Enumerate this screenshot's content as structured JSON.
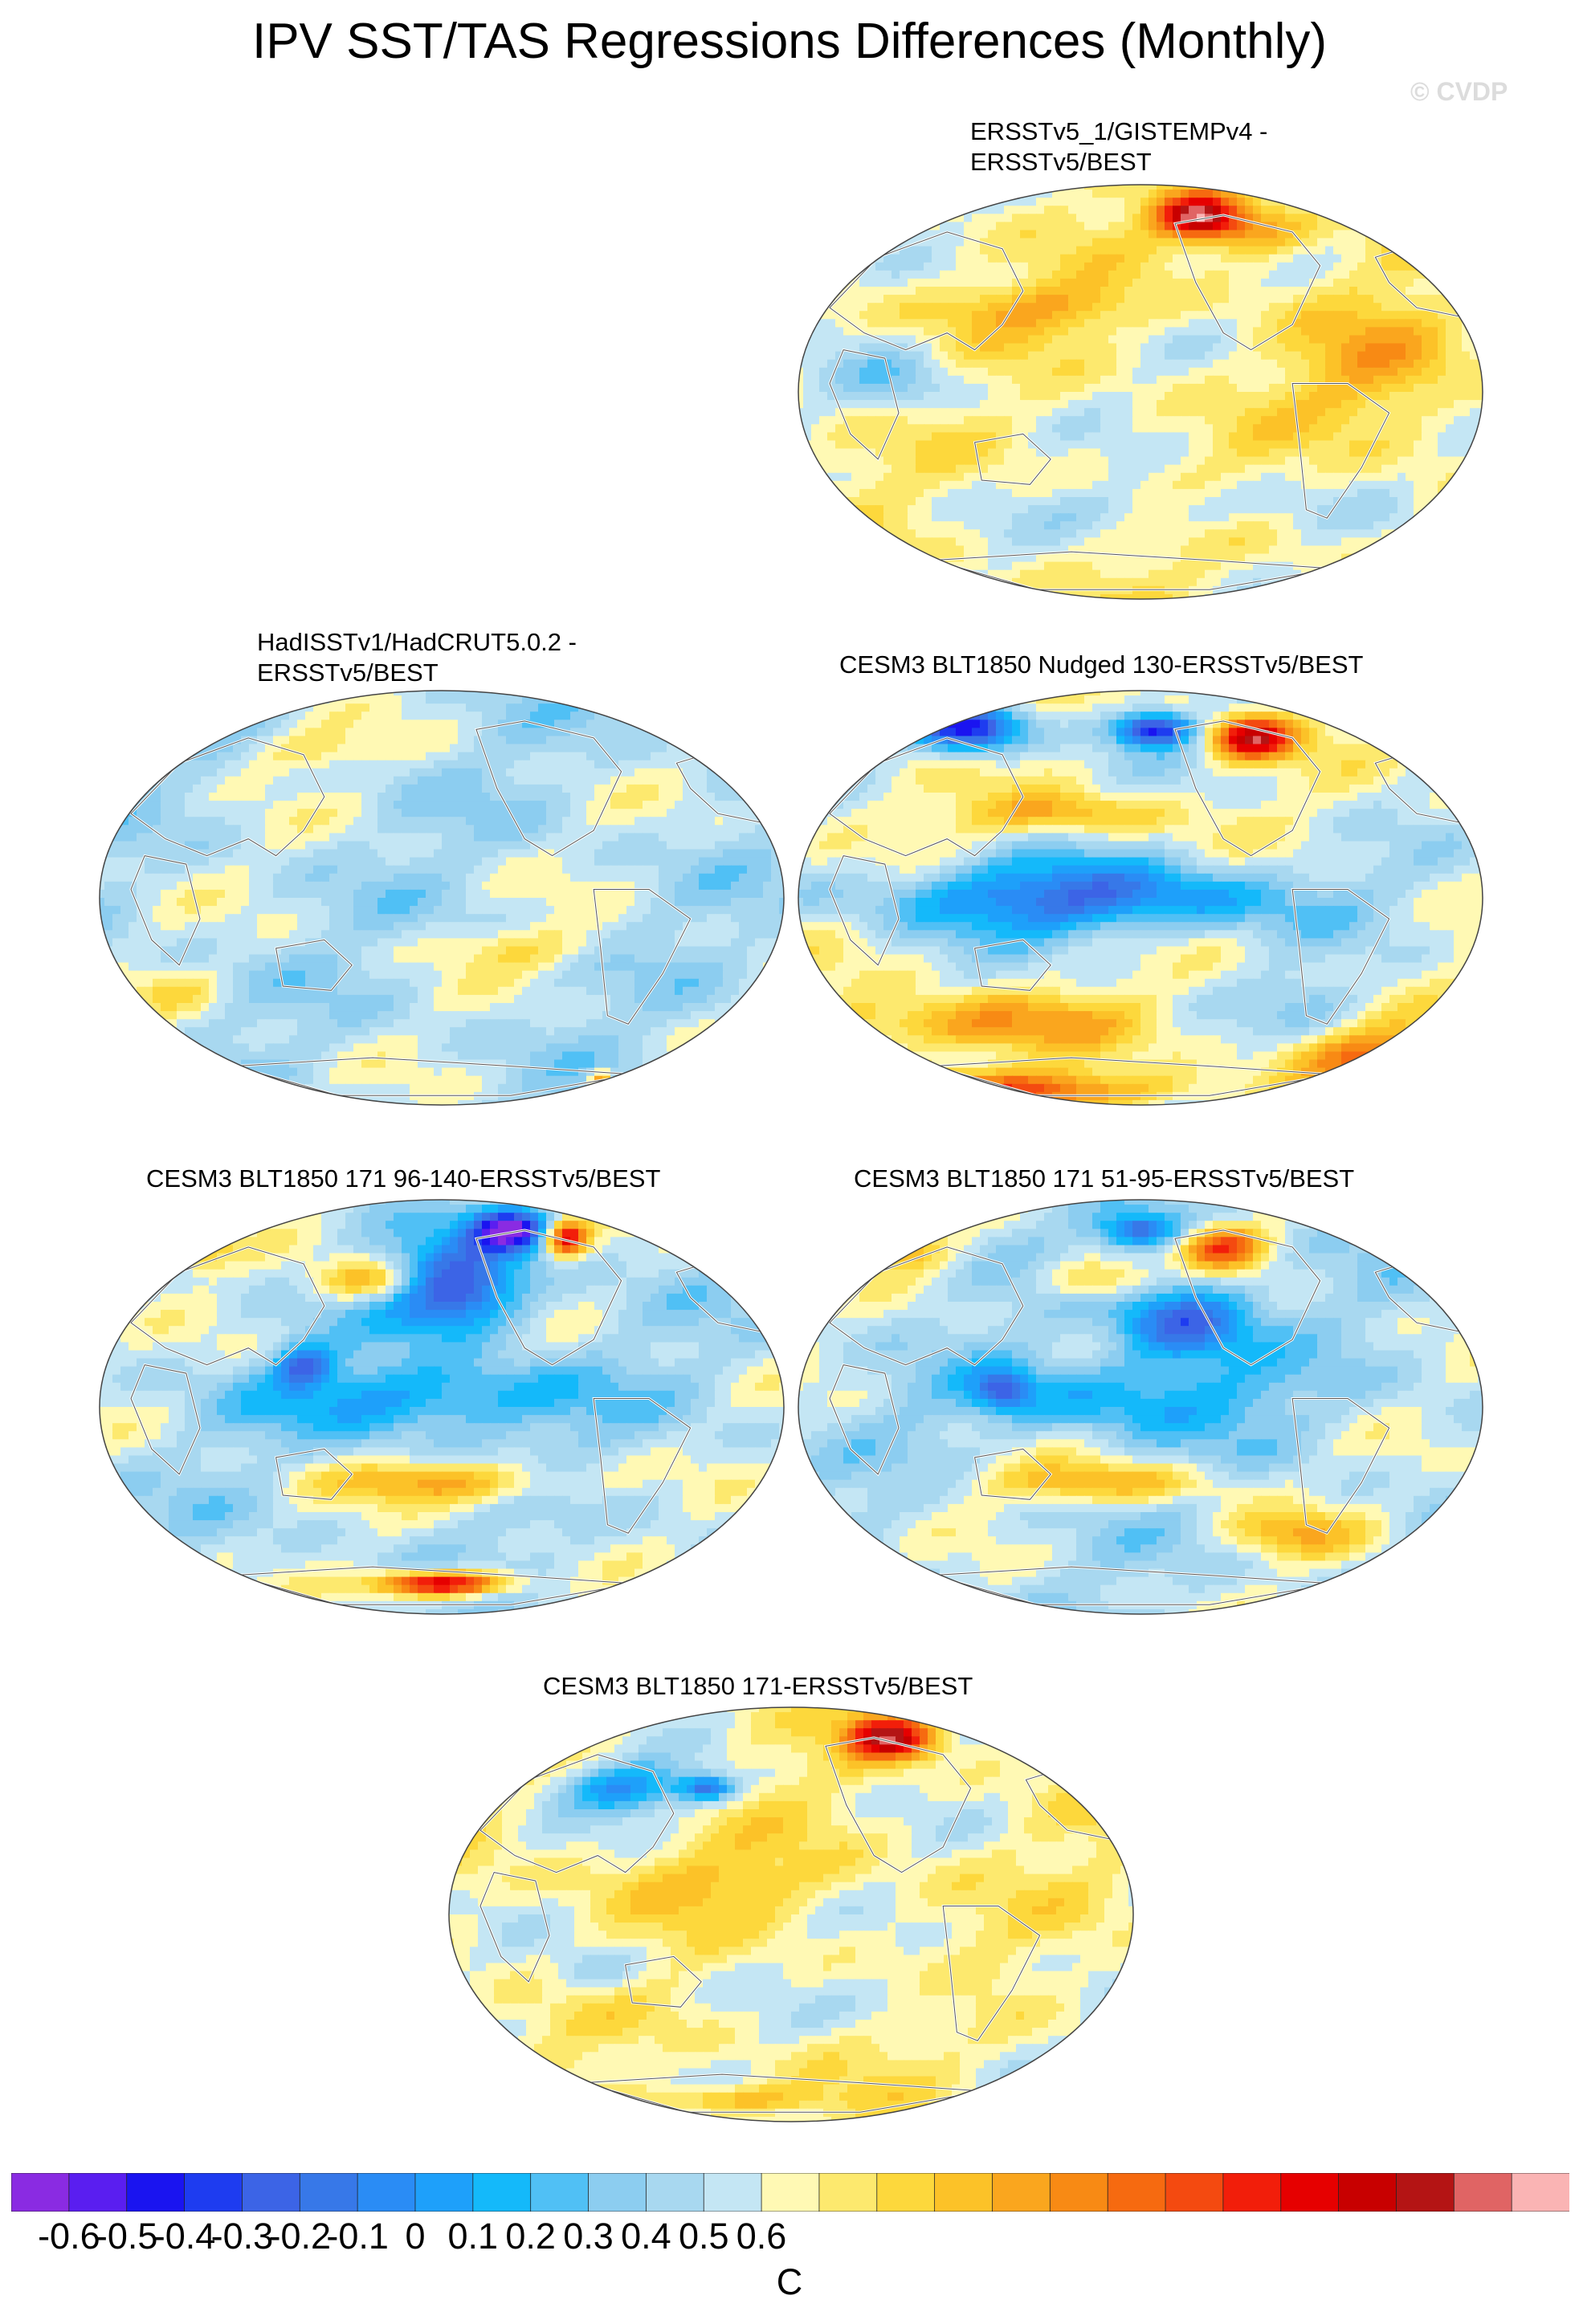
{
  "title": "IPV SST/TAS Regressions Differences (Monthly)",
  "watermark": "© CVDP",
  "chart_data": {
    "type": "heatmap",
    "description_units": "C",
    "colorbar": {
      "units": "C",
      "tick_labels": [
        "-0.6",
        "-0.5",
        "-0.4",
        "-0.3",
        "-0.2",
        "-0.1",
        "0",
        "0.1",
        "0.2",
        "0.3",
        "0.4",
        "0.5",
        "0.6"
      ],
      "colors": [
        "#8a2be2",
        "#5a1ef0",
        "#1a14f0",
        "#1e3cf0",
        "#3c64e6",
        "#3778e8",
        "#2a8cf5",
        "#1ea0fa",
        "#14b9fa",
        "#50c0f5",
        "#8ccdf0",
        "#a8d8f0",
        "#c4e6f4",
        "#fff9b4",
        "#fde96e",
        "#fdd83c",
        "#fcc228",
        "#faa61e",
        "#f88a14",
        "#f66a10",
        "#f44a10",
        "#f21e0a",
        "#e60000",
        "#c80000",
        "#b41414",
        "#e06464",
        "#fab4b4"
      ]
    },
    "panels": [
      {
        "id": "ersstv5_1",
        "title_lines": [
          "ERSSTv5_1/GISTEMPv4 -",
          "ERSSTv5/BEST"
        ],
        "pattern": "p1"
      },
      {
        "id": "hadisst",
        "title_lines": [
          "HadISSTv1/HadCRUT5.0.2 -",
          "ERSSTv5/BEST"
        ],
        "pattern": "p2"
      },
      {
        "id": "nudged",
        "title_lines": [
          "CESM3 BLT1850 Nudged 130-ERSSTv5/BEST"
        ],
        "pattern": "p3"
      },
      {
        "id": "m96_140",
        "title_lines": [
          "CESM3 BLT1850 171 96-140-ERSSTv5/BEST"
        ],
        "pattern": "p4"
      },
      {
        "id": "m51_95",
        "title_lines": [
          "CESM3 BLT1850 171 51-95-ERSSTv5/BEST"
        ],
        "pattern": "p5"
      },
      {
        "id": "full171",
        "title_lines": [
          "CESM3 BLT1850 171-ERSSTv5/BEST"
        ],
        "pattern": "p6"
      }
    ]
  }
}
